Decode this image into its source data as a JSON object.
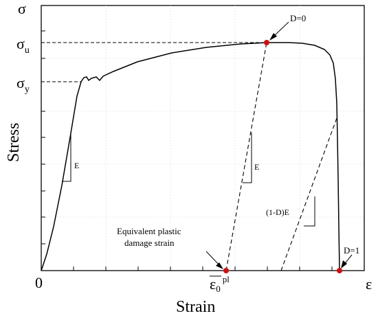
{
  "diagram": {
    "y_axis_symbol": "σ",
    "x_axis_symbol": "ε",
    "origin_label": "0",
    "x_axis_title": "Strain",
    "y_axis_title": "Stress",
    "sigma_u": {
      "base": "σ",
      "sub": "u"
    },
    "sigma_y": {
      "base": "σ",
      "sub": "y"
    },
    "modulus_label": "E",
    "unloading_modulus_label": "E",
    "damaged_modulus_label": "(1-D)E",
    "d0_label": "D=0",
    "d1_label": "D=1",
    "annotation_line1": "Equivalent plastic",
    "annotation_line2": "damage strain",
    "eps0": {
      "base": "ε",
      "sub": "0",
      "sup": "pl"
    }
  },
  "colors": {
    "curve": "#000000",
    "marker": "#cc1111",
    "grid": "#d0d0d0"
  }
}
